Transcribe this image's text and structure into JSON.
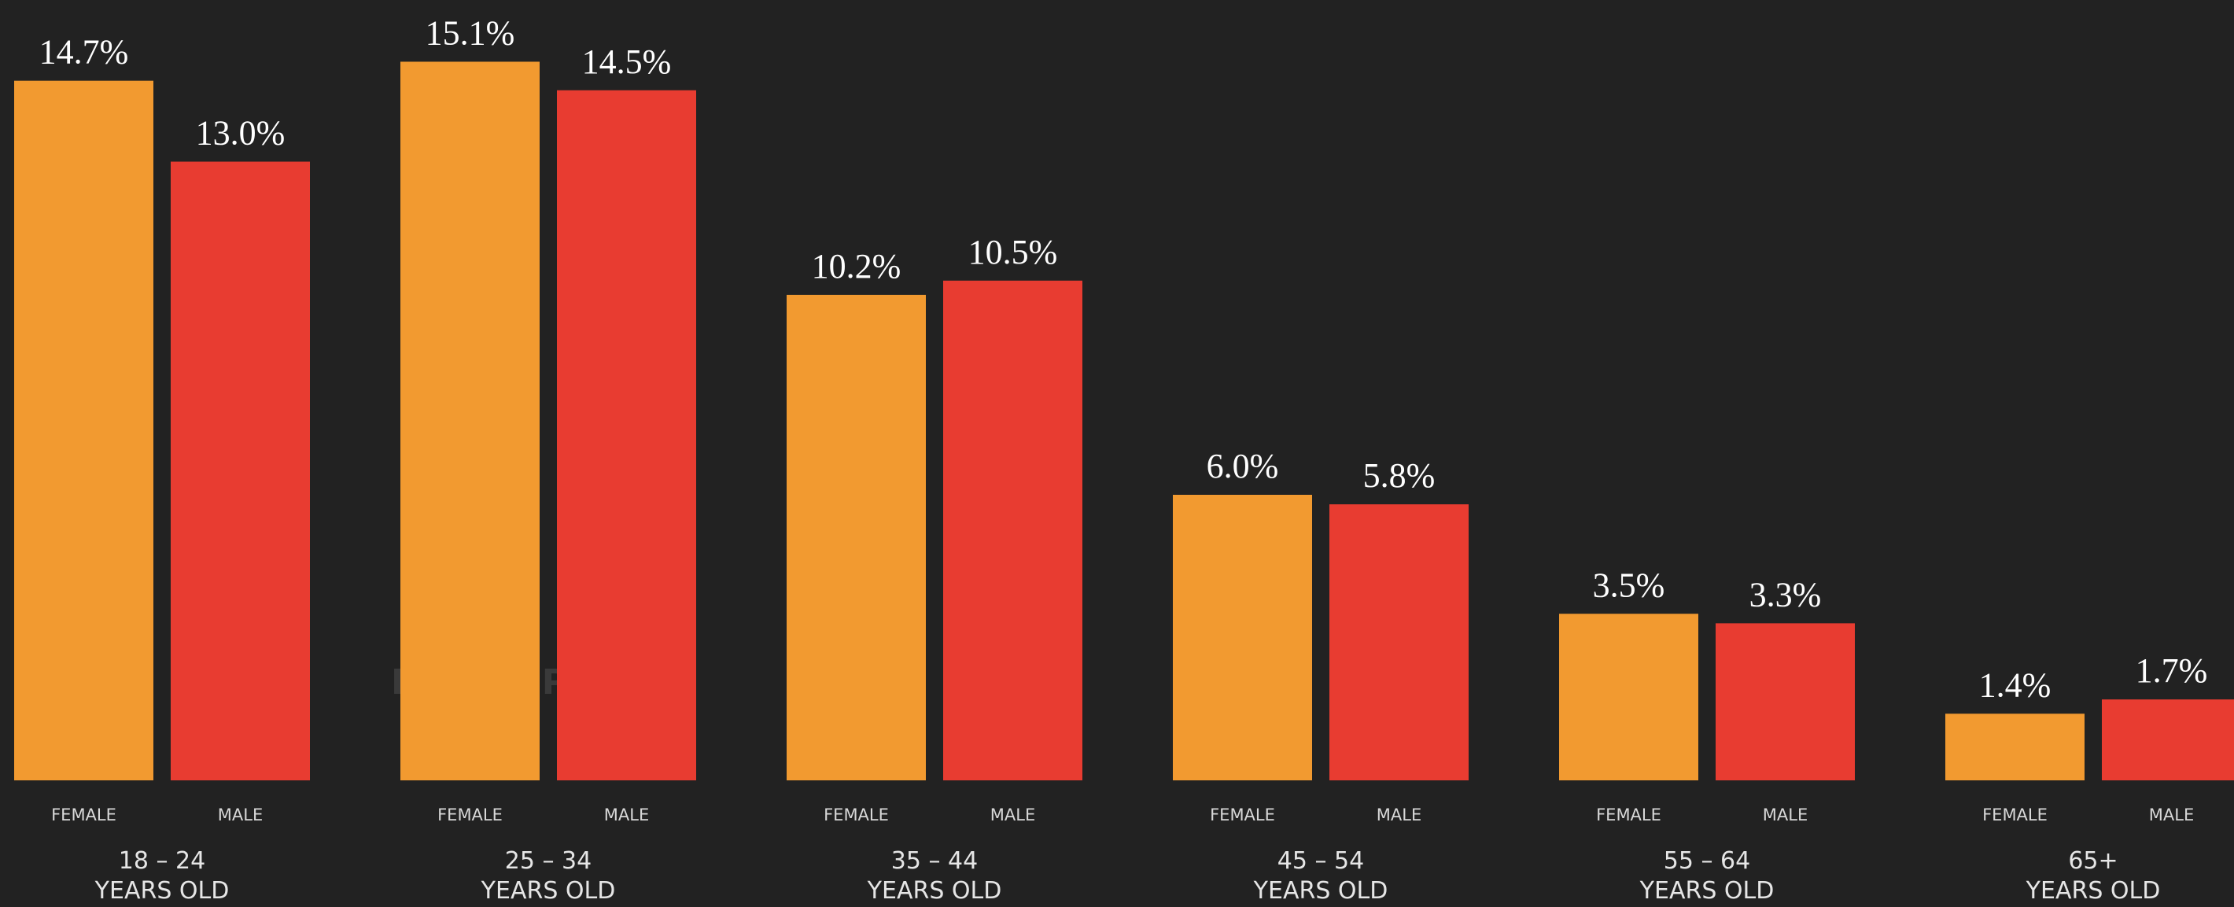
{
  "chart_data": {
    "type": "bar",
    "categories": [
      "18 – 24\nYEARS OLD",
      "25 – 34\nYEARS OLD",
      "35 – 44\nYEARS OLD",
      "45 – 54\nYEARS OLD",
      "55 – 64\nYEARS OLD",
      "65+\nYEARS OLD"
    ],
    "series": [
      {
        "name": "FEMALE",
        "color": "#f29a30",
        "values": [
          14.7,
          15.1,
          10.2,
          6.0,
          3.5,
          1.4
        ],
        "value_labels": [
          "14.7%",
          "15.1%",
          "10.2%",
          "6.0%",
          "3.5%",
          "1.4%"
        ]
      },
      {
        "name": "MALE",
        "color": "#e83c31",
        "values": [
          13.0,
          14.5,
          10.5,
          5.8,
          3.3,
          1.7
        ],
        "value_labels": [
          "13.0%",
          "14.5%",
          "10.5%",
          "5.8%",
          "3.3%",
          "1.7%"
        ]
      }
    ],
    "watermark": "DATAREPORTAL"
  }
}
